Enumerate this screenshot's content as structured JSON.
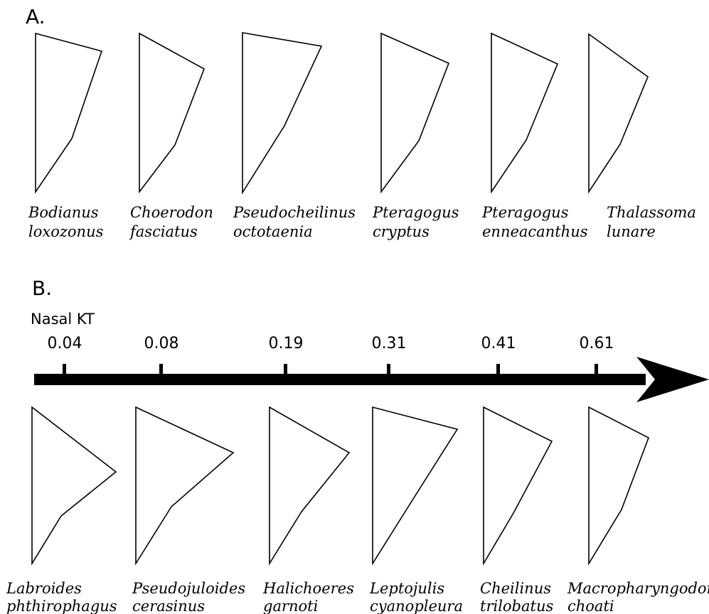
{
  "panel_a": {
    "label": "A.",
    "species": [
      {
        "line1": "Bodianus",
        "line2": "loxozonus"
      },
      {
        "line1": "Choerodon",
        "line2": "fasciatus"
      },
      {
        "line1": "Pseudocheilinus",
        "line2": "octotaenia"
      },
      {
        "line1": "Pteragogus",
        "line2": "cryptus"
      },
      {
        "line1": "Pteragogus",
        "line2": "enneacanthus"
      },
      {
        "line1": "Thalassoma",
        "line2": "lunare"
      }
    ]
  },
  "panel_b": {
    "label": "B.",
    "axis_title": "Nasal KT",
    "kt_values": [
      "0.04",
      "0.08",
      "0.19",
      "0.31",
      "0.41",
      "0.61"
    ],
    "species": [
      {
        "line1": "Labroides",
        "line2": "phthirophagus"
      },
      {
        "line1": "Pseudojuloides",
        "line2": "cerasinus"
      },
      {
        "line1": "Halichoeres",
        "line2": "garnoti"
      },
      {
        "line1": "Leptojulis",
        "line2": "cyanopleura"
      },
      {
        "line1": "Cheilinus",
        "line2": "trilobatus"
      },
      {
        "line1": "Macropharyngodon",
        "line2": "choati"
      }
    ]
  }
}
